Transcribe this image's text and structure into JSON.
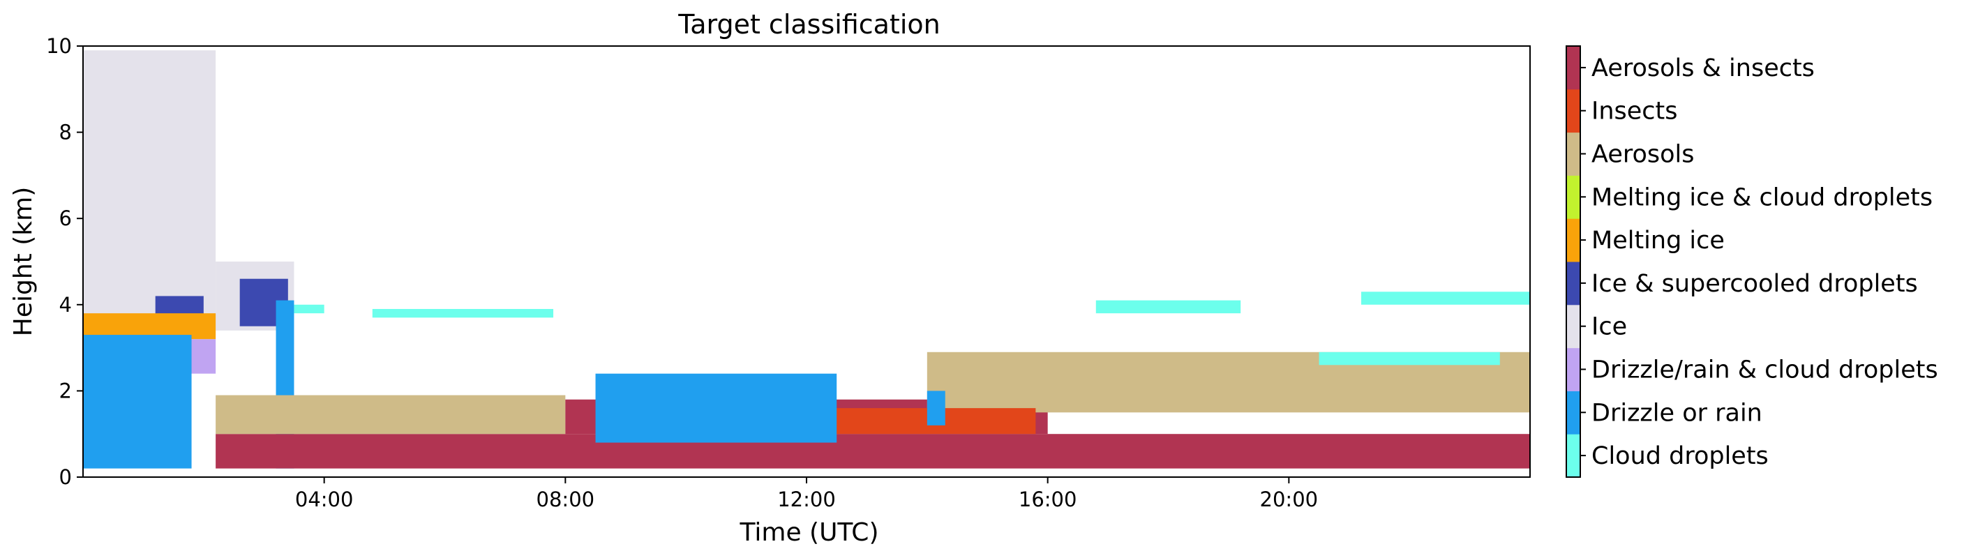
{
  "chart_data": {
    "type": "heatmap",
    "title": "Target classification",
    "xlabel": "Time (UTC)",
    "ylabel": "Height (km)",
    "xlim": [
      "00:00",
      "24:00"
    ],
    "ylim": [
      0,
      10
    ],
    "x_ticks": [
      "04:00",
      "08:00",
      "12:00",
      "16:00",
      "20:00"
    ],
    "y_ticks": [
      "0",
      "2",
      "4",
      "6",
      "8",
      "10"
    ],
    "legend": {
      "placement": "right colorbar",
      "classes": [
        {
          "name": "Cloud droplets",
          "color": "#6cffec"
        },
        {
          "name": "Drizzle or rain",
          "color": "#209fef"
        },
        {
          "name": "Drizzle/rain & cloud droplets",
          "color": "#c0a4f2"
        },
        {
          "name": "Ice",
          "color": "#e4e2eb"
        },
        {
          "name": "Ice & supercooled droplets",
          "color": "#3c49b0"
        },
        {
          "name": "Melting ice",
          "color": "#f9a30a"
        },
        {
          "name": "Melting ice & cloud droplets",
          "color": "#c2f22e"
        },
        {
          "name": "Aerosols",
          "color": "#cfbb88"
        },
        {
          "name": "Insects",
          "color": "#e2461a"
        },
        {
          "name": "Aerosols & insects",
          "color": "#b13452"
        }
      ]
    },
    "regions": [
      {
        "class": "Ice",
        "t_start": 0.0,
        "t_end": 2.2,
        "h_bottom": 3.3,
        "h_top": 9.9
      },
      {
        "class": "Ice",
        "t_start": 2.2,
        "t_end": 3.5,
        "h_bottom": 3.4,
        "h_top": 5.0
      },
      {
        "class": "Ice & supercooled droplets",
        "t_start": 1.2,
        "t_end": 2.0,
        "h_bottom": 3.4,
        "h_top": 4.2
      },
      {
        "class": "Ice & supercooled droplets",
        "t_start": 2.6,
        "t_end": 3.4,
        "h_bottom": 3.5,
        "h_top": 4.6
      },
      {
        "class": "Melting ice",
        "t_start": 0.0,
        "t_end": 2.2,
        "h_bottom": 3.2,
        "h_top": 3.8
      },
      {
        "class": "Drizzle/rain & cloud droplets",
        "t_start": 0.0,
        "t_end": 2.2,
        "h_bottom": 2.4,
        "h_top": 3.2
      },
      {
        "class": "Drizzle or rain",
        "t_start": 0.0,
        "t_end": 1.8,
        "h_bottom": 0.2,
        "h_top": 3.3
      },
      {
        "class": "Drizzle or rain",
        "t_start": 3.2,
        "t_end": 3.5,
        "h_bottom": 0.2,
        "h_top": 4.1
      },
      {
        "class": "Aerosols & insects",
        "t_start": 2.2,
        "t_end": 24.0,
        "h_bottom": 0.2,
        "h_top": 1.0
      },
      {
        "class": "Aerosols",
        "t_start": 2.2,
        "t_end": 8.0,
        "h_bottom": 1.0,
        "h_top": 1.9
      },
      {
        "class": "Aerosols & insects",
        "t_start": 8.0,
        "t_end": 16.0,
        "h_bottom": 1.0,
        "h_top": 1.8
      },
      {
        "class": "Aerosols",
        "t_start": 14.0,
        "t_end": 24.0,
        "h_bottom": 1.5,
        "h_top": 2.9
      },
      {
        "class": "Insects",
        "t_start": 10.0,
        "t_end": 15.8,
        "h_bottom": 1.0,
        "h_top": 1.6
      },
      {
        "class": "Drizzle or rain",
        "t_start": 8.5,
        "t_end": 12.5,
        "h_bottom": 0.8,
        "h_top": 2.4
      },
      {
        "class": "Drizzle or rain",
        "t_start": 14.0,
        "t_end": 14.3,
        "h_bottom": 1.2,
        "h_top": 2.0
      },
      {
        "class": "Cloud droplets",
        "t_start": 4.8,
        "t_end": 7.8,
        "h_bottom": 3.7,
        "h_top": 3.9
      },
      {
        "class": "Cloud droplets",
        "t_start": 3.5,
        "t_end": 4.0,
        "h_bottom": 3.8,
        "h_top": 4.0
      },
      {
        "class": "Cloud droplets",
        "t_start": 16.8,
        "t_end": 19.2,
        "h_bottom": 3.8,
        "h_top": 4.1
      },
      {
        "class": "Cloud droplets",
        "t_start": 21.2,
        "t_end": 24.0,
        "h_bottom": 4.0,
        "h_top": 4.3
      },
      {
        "class": "Cloud droplets",
        "t_start": 20.5,
        "t_end": 23.5,
        "h_bottom": 2.6,
        "h_top": 2.9
      }
    ]
  }
}
